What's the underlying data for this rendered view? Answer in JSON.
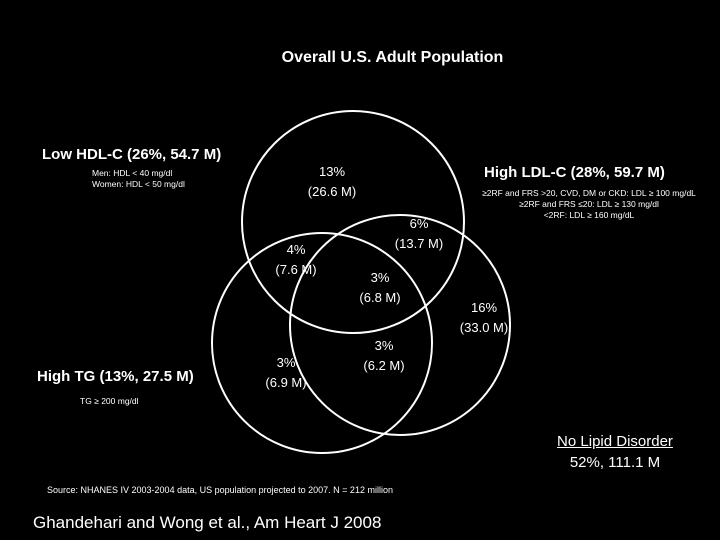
{
  "title": "Overall U.S. Adult Population",
  "sets": {
    "low_hdl": {
      "label": "Low HDL-C (26%, 54.7 M)",
      "criteria": [
        "Men: HDL < 40 mg/dl",
        "Women: HDL < 50 mg/dl"
      ]
    },
    "high_ldl": {
      "label": "High LDL-C (28%, 59.7 M)",
      "criteria": [
        "≥2RF and FRS >20, CVD, DM or CKD: LDL ≥ 100 mg/dL",
        "≥2RF and FRS ≤20: LDL ≥ 130 mg/dl",
        "<2RF: LDL ≥ 160 mg/dL"
      ]
    },
    "high_tg": {
      "label": "High TG (13%, 27.5 M)",
      "criteria": [
        "TG ≥ 200 mg/dl"
      ]
    }
  },
  "regions": [
    {
      "id": "low-hdl-only",
      "pct": "13%",
      "count": "(26.6 M)"
    },
    {
      "id": "hdl-ldl",
      "pct": "6%",
      "count": "(13.7 M)"
    },
    {
      "id": "hdl-tg",
      "pct": "4%",
      "count": "(7.6 M)"
    },
    {
      "id": "all-three",
      "pct": "3%",
      "count": "(6.8 M)"
    },
    {
      "id": "high-ldl-only",
      "pct": "16%",
      "count": "(33.0 M)"
    },
    {
      "id": "high-tg-only",
      "pct": "3%",
      "count": "(6.9 M)"
    },
    {
      "id": "ldl-tg",
      "pct": "3%",
      "count": "(6.2 M)"
    }
  ],
  "no_disorder": {
    "label": "No Lipid Disorder",
    "value": "52%, 111.1 M"
  },
  "source": "Source: NHANES IV 2003-2004 data, US population projected to 2007. N = 212 million",
  "citation": "Ghandehari and Wong et al., Am Heart J 2008",
  "colors": {
    "background": "#000000",
    "foreground": "#ffffff"
  }
}
